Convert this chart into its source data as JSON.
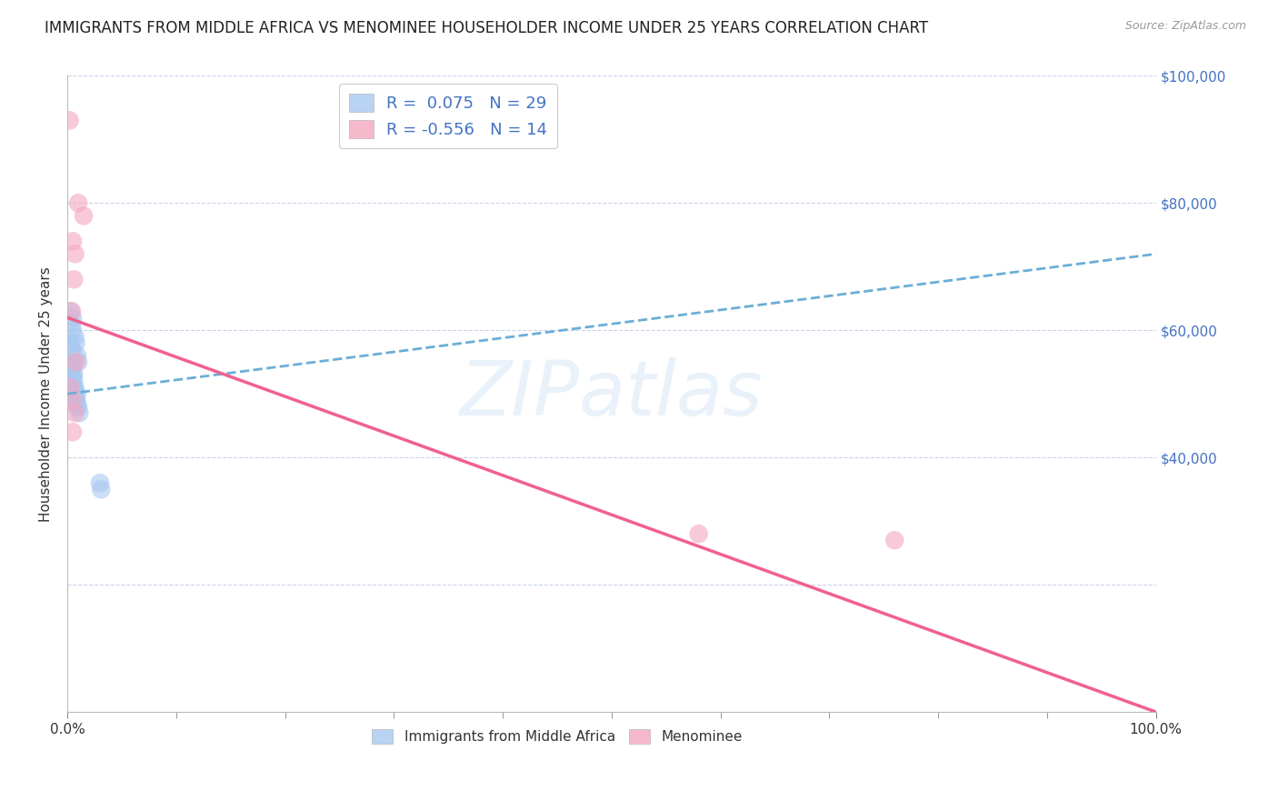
{
  "title": "IMMIGRANTS FROM MIDDLE AFRICA VS MENOMINEE HOUSEHOLDER INCOME UNDER 25 YEARS CORRELATION CHART",
  "source": "Source: ZipAtlas.com",
  "ylabel": "Householder Income Under 25 years",
  "xmin": 0.0,
  "xmax": 1.0,
  "ymin": 0,
  "ymax": 100000,
  "yticks": [
    0,
    20000,
    40000,
    60000,
    80000,
    100000
  ],
  "xtick_positions": [
    0.0,
    1.0
  ],
  "xtick_labels": [
    "0.0%",
    "100.0%"
  ],
  "xtick_minor_positions": [
    0.1,
    0.2,
    0.3,
    0.4,
    0.5,
    0.6,
    0.7,
    0.8,
    0.9
  ],
  "blue_scatter_x": [
    0.003,
    0.005,
    0.007,
    0.005,
    0.008,
    0.009,
    0.01,
    0.006,
    0.004,
    0.006,
    0.007,
    0.008,
    0.009,
    0.01,
    0.011,
    0.003,
    0.004,
    0.005,
    0.006,
    0.004,
    0.005,
    0.006,
    0.007,
    0.007,
    0.008,
    0.009,
    0.03,
    0.031,
    0.003
  ],
  "blue_scatter_y": [
    55000,
    57000,
    59000,
    60000,
    58000,
    56000,
    55000,
    53000,
    52000,
    51000,
    50000,
    49000,
    50000,
    48000,
    47000,
    63000,
    61000,
    62000,
    55000,
    54000,
    53000,
    52000,
    51000,
    50000,
    49000,
    48000,
    36000,
    35000,
    58000
  ],
  "pink_scatter_x": [
    0.002,
    0.01,
    0.015,
    0.005,
    0.007,
    0.006,
    0.008,
    0.003,
    0.005,
    0.007,
    0.005,
    0.58,
    0.76
  ],
  "pink_scatter_y": [
    93000,
    80000,
    78000,
    74000,
    72000,
    68000,
    55000,
    51000,
    49000,
    47000,
    44000,
    28000,
    27000
  ],
  "pink_scatter2_x": [
    0.004
  ],
  "pink_scatter2_y": [
    63000
  ],
  "blue_line_x": [
    0.0,
    1.0
  ],
  "blue_line_y": [
    50000,
    72000
  ],
  "pink_line_x": [
    0.0,
    1.0
  ],
  "pink_line_y": [
    62000,
    0
  ],
  "watermark": "ZIPatlas",
  "blue_color": "#a8c8f0",
  "pink_color": "#f4a8c0",
  "blue_line_color": "#6baed6",
  "pink_line_color": "#f06090",
  "background_color": "#ffffff",
  "grid_color": "#c8d4e8",
  "title_fontsize": 12,
  "axis_label_fontsize": 11,
  "tick_fontsize": 11,
  "right_tick_color": "#4472c4",
  "legend_label_color": "#4472c4"
}
